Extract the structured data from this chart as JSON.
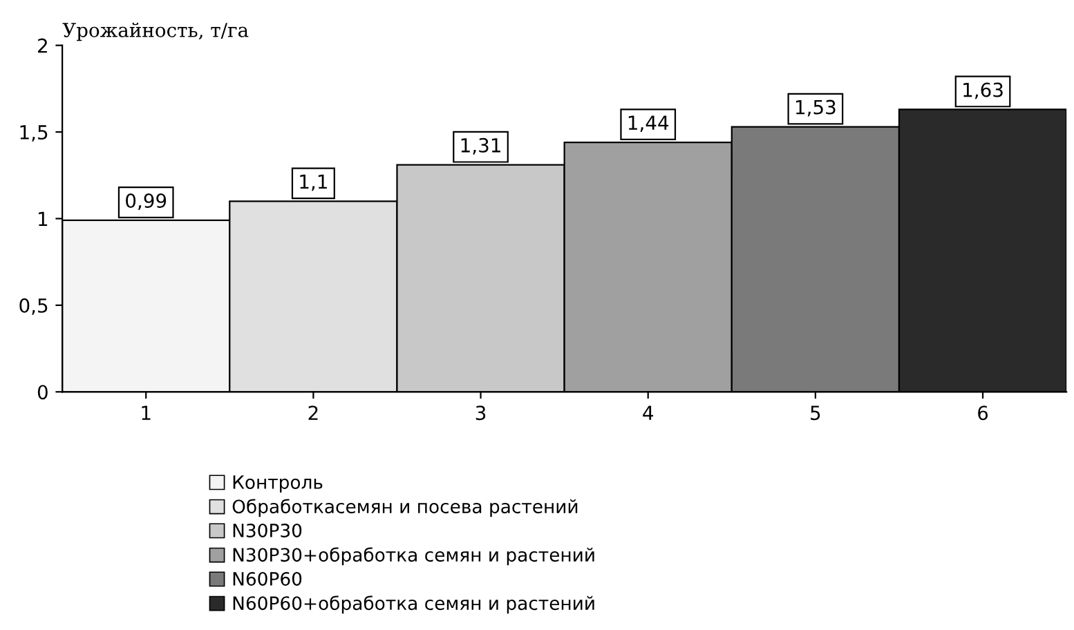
{
  "chart_data": {
    "type": "bar",
    "ylabel": "Урожайность, т/га",
    "categories": [
      "1",
      "2",
      "3",
      "4",
      "5",
      "6"
    ],
    "series": [
      {
        "name": "Контроль",
        "color": "#f4f4f4",
        "values": [
          0.99,
          null,
          null,
          null,
          null,
          null
        ],
        "value_labels": [
          "0,99",
          null,
          null,
          null,
          null,
          null
        ]
      },
      {
        "name": "Обработкасемян и посева растений",
        "color": "#e0e0e0",
        "values": [
          null,
          1.1,
          null,
          null,
          null,
          null
        ],
        "value_labels": [
          null,
          "1,1",
          null,
          null,
          null,
          null
        ]
      },
      {
        "name": "N30P30",
        "color": "#c8c8c8",
        "values": [
          null,
          null,
          1.31,
          null,
          null,
          null
        ],
        "value_labels": [
          null,
          null,
          "1,31",
          null,
          null,
          null
        ]
      },
      {
        "name": "N30P30+обработка семян и растений",
        "color": "#a0a0a0",
        "values": [
          null,
          null,
          null,
          1.44,
          null,
          null
        ],
        "value_labels": [
          null,
          null,
          null,
          "1,44",
          null,
          null
        ]
      },
      {
        "name": "N60P60",
        "color": "#7a7a7a",
        "values": [
          null,
          null,
          null,
          null,
          1.53,
          null
        ],
        "value_labels": [
          null,
          null,
          null,
          null,
          "1,53",
          null
        ]
      },
      {
        "name": "N60P60+обработка семян и растений",
        "color": "#2a2a2a",
        "values": [
          null,
          null,
          null,
          null,
          null,
          1.63
        ],
        "value_labels": [
          null,
          null,
          null,
          null,
          null,
          "1,63"
        ]
      }
    ],
    "ylim": [
      0,
      2
    ],
    "yticks": [
      {
        "value": 0,
        "label": "0"
      },
      {
        "value": 0.5,
        "label": "0,5"
      },
      {
        "value": 1,
        "label": "1"
      },
      {
        "value": 1.5,
        "label": "1,5"
      },
      {
        "value": 2,
        "label": "2"
      }
    ],
    "legend": "bottom",
    "grid": false
  }
}
